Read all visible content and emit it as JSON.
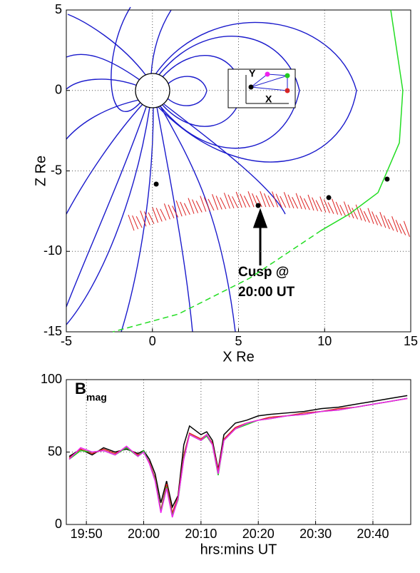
{
  "chart_data": [
    {
      "type": "line",
      "xlabel": "X Re",
      "ylabel": "Z Re",
      "xlim": [
        -5,
        15
      ],
      "ylim": [
        -15,
        5
      ],
      "xticks": [
        -5,
        0,
        5,
        10,
        15
      ],
      "yticks": [
        -15,
        -10,
        -5,
        0,
        5
      ],
      "grid": true,
      "annotation": [
        "Cusp @",
        "20:00 UT"
      ],
      "inset_labels": [
        "Y",
        "X"
      ],
      "series": [
        {
          "color": "#22dd22",
          "style": "solid",
          "x": [
            13.84,
            14.54,
            14.34,
            13.1,
            11.44,
            9.8
          ],
          "y": [
            5,
            0,
            -3.25,
            -6.35,
            -7.68,
            -8.7
          ]
        },
        {
          "color": "#22dd22",
          "style": "dashed",
          "x": [
            9.8,
            9.37,
            5.64,
            1.5,
            -2.3
          ],
          "y": [
            -8.7,
            -9.01,
            -11.67,
            -13.9,
            -15
          ]
        },
        {
          "color": "#000000",
          "style": "points",
          "x": [
            0.22,
            6.14,
            10.24,
            13.63
          ],
          "y": [
            -5.82,
            -7.15,
            -6.66,
            -5.51
          ]
        }
      ]
    },
    {
      "type": "line",
      "title": "B",
      "title_subscript": "mag",
      "xlabel": "hrs:mins UT",
      "xlim": [
        1186.5,
        1246.6
      ],
      "ylim": [
        0,
        100
      ],
      "xticks": [
        {
          "value": 1190,
          "label": "19:50"
        },
        {
          "value": 1200,
          "label": "20:00"
        },
        {
          "value": 1210,
          "label": "20:10"
        },
        {
          "value": 1220,
          "label": "20:20"
        },
        {
          "value": 1230,
          "label": "20:30"
        },
        {
          "value": 1240,
          "label": "20:40"
        }
      ],
      "yticks": [
        0,
        50,
        100
      ],
      "grid": true,
      "x": [
        1187,
        1189,
        1191,
        1193,
        1195,
        1197,
        1199,
        1200,
        1201,
        1202,
        1203,
        1204,
        1205,
        1206,
        1207,
        1208,
        1209,
        1210,
        1211,
        1212,
        1213,
        1214,
        1216,
        1218,
        1220,
        1222,
        1225,
        1228,
        1231,
        1234,
        1237,
        1240,
        1243,
        1246
      ],
      "series": [
        {
          "color": "#000000",
          "values": [
            47,
            52,
            48,
            53,
            50,
            52,
            49,
            51,
            45,
            35,
            15,
            30,
            12,
            20,
            55,
            68,
            65,
            62,
            64,
            58,
            38,
            62,
            70,
            72,
            75,
            76,
            77,
            78,
            80,
            81,
            83,
            85,
            87,
            89
          ]
        },
        {
          "color": "#dd2222",
          "values": [
            46,
            52,
            49,
            52,
            49,
            53,
            48,
            50,
            43,
            32,
            10,
            28,
            8,
            19,
            48,
            63,
            61,
            59,
            62,
            56,
            37,
            59,
            67,
            70,
            72,
            74,
            75,
            77,
            78,
            80,
            81,
            83,
            85,
            87
          ]
        },
        {
          "color": "#22cc22",
          "values": [
            45,
            51,
            50,
            51,
            48,
            53,
            47,
            51,
            42,
            31,
            9,
            26,
            6,
            17,
            46,
            62,
            60,
            58,
            61,
            55,
            34,
            58,
            66,
            69,
            72,
            73,
            75,
            76,
            78,
            79,
            81,
            83,
            85,
            87
          ]
        },
        {
          "color": "#ee22ee",
          "values": [
            45,
            53,
            50,
            51,
            48,
            54,
            47,
            50,
            42,
            30,
            8,
            25,
            5,
            18,
            45,
            62,
            60,
            58,
            62,
            55,
            35,
            58,
            66,
            70,
            72,
            73,
            75,
            76,
            78,
            79,
            81,
            83,
            85,
            87
          ]
        }
      ]
    }
  ]
}
